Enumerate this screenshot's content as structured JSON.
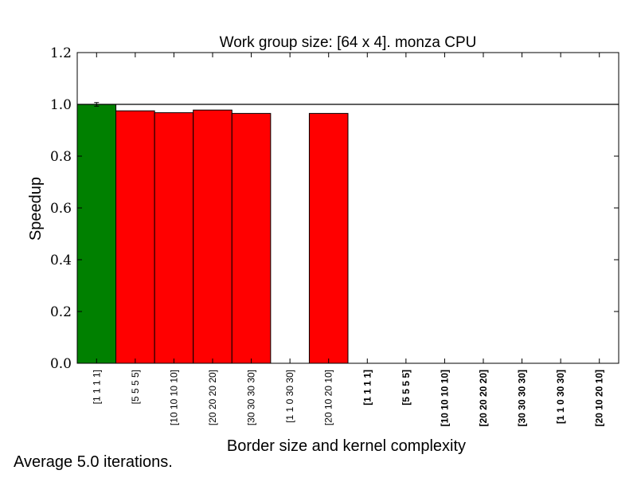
{
  "chart_data": {
    "type": "bar",
    "title": "Work group size: [64 x 4]. monza CPU",
    "xlabel": "Border size and kernel complexity",
    "ylabel": "Speedup",
    "ylim": [
      0.0,
      1.2
    ],
    "yticks": [
      "0.0",
      "0.2",
      "0.4",
      "0.6",
      "0.8",
      "1.0",
      "1.2"
    ],
    "reference_line": 1.0,
    "categories": [
      {
        "label": "[1 1 1 1]",
        "bold": false
      },
      {
        "label": "[5 5 5 5]",
        "bold": false
      },
      {
        "label": "[10 10 10 10]",
        "bold": false
      },
      {
        "label": "[20 20 20 20]",
        "bold": false
      },
      {
        "label": "[30 30 30 30]",
        "bold": false
      },
      {
        "label": "[1 1 0 30 30]",
        "bold": false
      },
      {
        "label": "[20 10 20 10]",
        "bold": false
      },
      {
        "label": "[1 1 1 1]",
        "bold": true
      },
      {
        "label": "[5 5 5 5]",
        "bold": true
      },
      {
        "label": "[10 10 10 10]",
        "bold": true
      },
      {
        "label": "[20 20 20 20]",
        "bold": true
      },
      {
        "label": "[30 30 30 30]",
        "bold": true
      },
      {
        "label": "[1 1 0 30 30]",
        "bold": true
      },
      {
        "label": "[20 10 20 10]",
        "bold": true
      }
    ],
    "values": [
      1.0,
      0.975,
      0.968,
      0.978,
      0.965,
      null,
      0.965,
      null,
      null,
      null,
      null,
      null,
      null,
      null
    ],
    "errors": [
      0.007,
      0,
      0,
      0,
      0,
      0,
      0,
      0,
      0,
      0,
      0,
      0,
      0,
      0
    ],
    "colors": [
      "#008000",
      "#ff0000",
      "#ff0000",
      "#ff0000",
      "#ff0000",
      "#ff0000",
      "#ff0000",
      "#ff0000",
      "#ff0000",
      "#ff0000",
      "#ff0000",
      "#ff0000",
      "#ff0000",
      "#ff0000"
    ],
    "grid": false
  },
  "footnote": "Average 5.0 iterations."
}
